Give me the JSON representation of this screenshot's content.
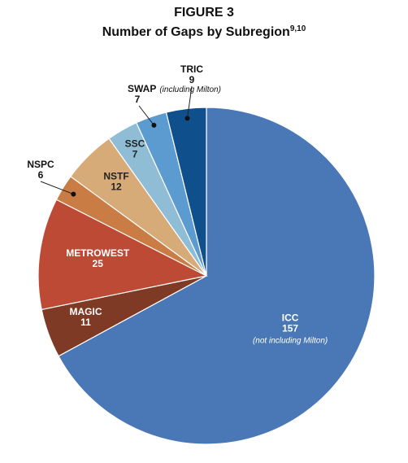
{
  "figure_label": "FIGURE 3",
  "subtitle": "Number of Gaps by Subregion",
  "subtitle_sup": "9,10",
  "chart_data": {
    "type": "pie",
    "title": "FIGURE 3",
    "subtitle": "Number of Gaps by Subregion",
    "legend": "none",
    "slices": [
      {
        "label": "ICC",
        "value": 157,
        "note": "(not including Milton)",
        "color": "#4a78b7"
      },
      {
        "label": "MAGIC",
        "value": 11,
        "note": "",
        "color": "#7e3a24"
      },
      {
        "label": "METROWEST",
        "value": 25,
        "note": "",
        "color": "#bd4a35"
      },
      {
        "label": "NSPC",
        "value": 6,
        "note": "",
        "color": "#c97d45"
      },
      {
        "label": "NSTF",
        "value": 12,
        "note": "",
        "color": "#d6ab78"
      },
      {
        "label": "SSC",
        "value": 7,
        "note": "",
        "color": "#8fbdd6"
      },
      {
        "label": "SWAP",
        "value": 7,
        "note": "(including Milton)",
        "color": "#5b9bd0"
      },
      {
        "label": "TRIC",
        "value": 9,
        "note": "",
        "color": "#0f4f8b"
      }
    ]
  }
}
